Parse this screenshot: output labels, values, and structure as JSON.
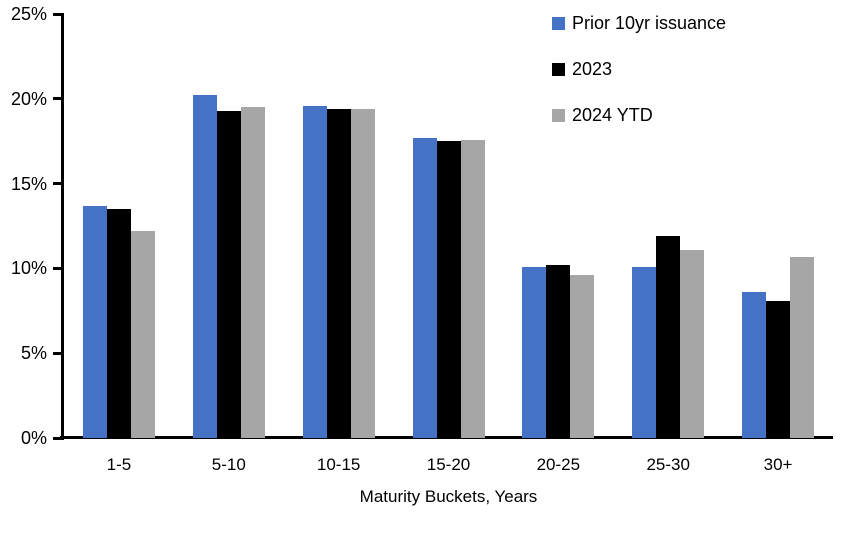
{
  "chart_data": {
    "type": "bar",
    "title": "",
    "xlabel": "Maturity Buckets, Years",
    "ylabel": "",
    "ylim": [
      0,
      25
    ],
    "grid": false,
    "legend_position": "top-right",
    "background_color": "#FFFFFF",
    "axis_color": "#000000",
    "yticks": [
      {
        "label": "0%",
        "value": 0
      },
      {
        "label": "5%",
        "value": 5
      },
      {
        "label": "10%",
        "value": 10
      },
      {
        "label": "15%",
        "value": 15
      },
      {
        "label": "20%",
        "value": 20
      },
      {
        "label": "25%",
        "value": 25
      }
    ],
    "categories": [
      "1-5",
      "5-10",
      "10-15",
      "15-20",
      "20-25",
      "25-30",
      "30+"
    ],
    "series": [
      {
        "name": "Prior 10yr issuance",
        "color": "#4472C4",
        "values": [
          13.7,
          20.2,
          19.6,
          17.7,
          10.1,
          10.1,
          8.6
        ]
      },
      {
        "name": "2023",
        "color": "#000000",
        "values": [
          13.5,
          19.3,
          19.4,
          17.5,
          10.2,
          11.9,
          8.1
        ]
      },
      {
        "name": "2024 YTD",
        "color": "#A6A6A6",
        "values": [
          12.2,
          19.5,
          19.4,
          17.6,
          9.6,
          11.1,
          10.7
        ]
      }
    ]
  }
}
